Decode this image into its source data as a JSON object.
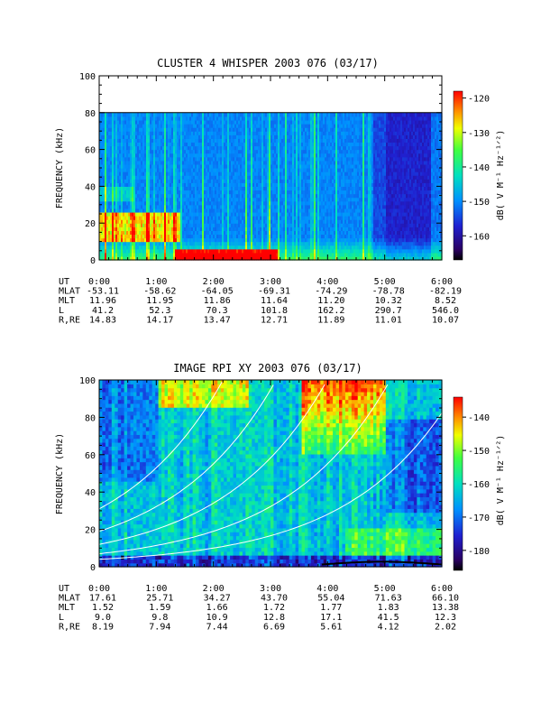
{
  "chart_data": [
    {
      "type": "heatmap",
      "title": "CLUSTER 4 WHISPER 2003 076 (03/17)",
      "ylabel": "FREQUENCY (kHz)",
      "yticks": [
        "0",
        "20",
        "40",
        "60",
        "80",
        "100"
      ],
      "ylim": [
        0,
        100
      ],
      "xticks": [
        "0:00",
        "1:00",
        "2:00",
        "3:00",
        "4:00",
        "5:00",
        "6:00"
      ],
      "xlim_hours": [
        0,
        6
      ],
      "data_max_frequency_khz": 80,
      "colorbar": {
        "label": "dB( V M⁻¹ Hz⁻¹ᐟ²)",
        "ticks": [
          "-120",
          "-130",
          "-140",
          "-150",
          "-160"
        ],
        "range": [
          -167,
          -118
        ]
      },
      "ephemeris": {
        "rows": [
          {
            "label": "UT",
            "values": [
              "0:00",
              "1:00",
              "2:00",
              "3:00",
              "4:00",
              "5:00",
              "6:00"
            ]
          },
          {
            "label": "MLAT",
            "values": [
              "-53.11",
              "-58.62",
              "-64.05",
              "-69.31",
              "-74.29",
              "-78.78",
              "-82.19"
            ]
          },
          {
            "label": "MLT",
            "values": [
              "11.96",
              "11.95",
              "11.86",
              "11.64",
              "11.20",
              "10.32",
              "8.52"
            ]
          },
          {
            "label": "L",
            "values": [
              "41.2",
              "52.3",
              "70.3",
              "101.8",
              "162.2",
              "290.7",
              "546.0"
            ]
          },
          {
            "label": "R,RE",
            "values": [
              "14.83",
              "14.17",
              "13.47",
              "12.71",
              "11.89",
              "11.01",
              "10.07"
            ]
          }
        ]
      }
    },
    {
      "type": "heatmap",
      "title": "IMAGE RPI XY 2003 076 (03/17)",
      "ylabel": "FREQUENCY (kHz)",
      "yticks": [
        "0",
        "20",
        "40",
        "60",
        "80",
        "100"
      ],
      "ylim": [
        0,
        100
      ],
      "xticks": [
        "0:00",
        "1:00",
        "2:00",
        "3:00",
        "4:00",
        "5:00",
        "6:00"
      ],
      "xlim_hours": [
        0,
        6
      ],
      "colorbar": {
        "label": "dB( V M⁻¹ Hz⁻¹ᐟ²)",
        "ticks": [
          "-140",
          "-150",
          "-160",
          "-170",
          "-180"
        ],
        "range": [
          -186,
          -134
        ]
      },
      "overlay_curves": "white plasma/gyro frequency curves",
      "ephemeris": {
        "rows": [
          {
            "label": "UT",
            "values": [
              "0:00",
              "1:00",
              "2:00",
              "3:00",
              "4:00",
              "5:00",
              "6:00"
            ]
          },
          {
            "label": "MLAT",
            "values": [
              "17.61",
              "25.71",
              "34.27",
              "43.70",
              "55.04",
              "71.63",
              "66.10"
            ]
          },
          {
            "label": "MLT",
            "values": [
              "1.52",
              "1.59",
              "1.66",
              "1.72",
              "1.77",
              "1.83",
              "13.38"
            ]
          },
          {
            "label": "L",
            "values": [
              "9.0",
              "9.8",
              "10.9",
              "12.8",
              "17.1",
              "41.5",
              "12.3"
            ]
          },
          {
            "label": "R,RE",
            "values": [
              "8.19",
              "7.94",
              "7.44",
              "6.69",
              "5.61",
              "4.12",
              "2.02"
            ]
          }
        ]
      }
    }
  ]
}
